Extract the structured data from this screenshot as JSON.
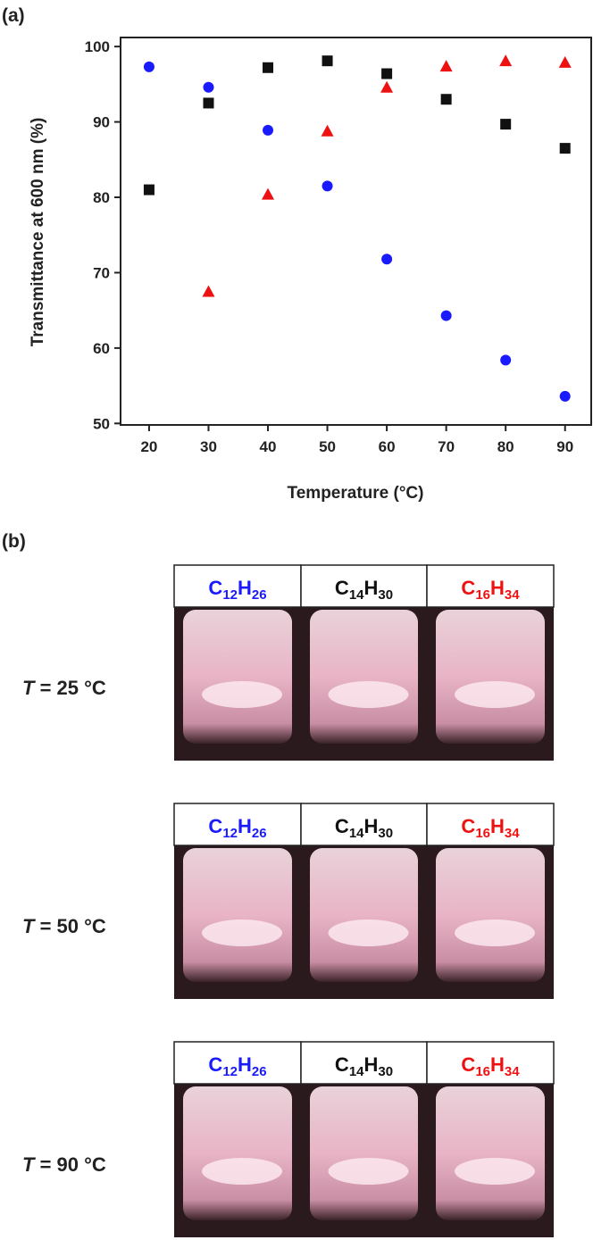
{
  "chart_data": {
    "type": "scatter",
    "xlabel": "Temperature (°C)",
    "ylabel": "Transmittance at 600 nm (%)",
    "xlim": [
      15.2,
      94.4
    ],
    "ylim": [
      49.8,
      101.2
    ],
    "xticks": [
      20,
      30,
      40,
      50,
      60,
      70,
      80,
      90
    ],
    "yticks": [
      50,
      60,
      70,
      80,
      90,
      100
    ],
    "series": [
      {
        "color": "#1a1aff",
        "marker": "circle",
        "x": [
          20,
          30,
          40,
          50,
          60,
          70,
          80,
          90
        ],
        "values": [
          97.3,
          94.6,
          88.9,
          81.5,
          71.8,
          64.3,
          58.4,
          53.6
        ]
      },
      {
        "color": "#111111",
        "marker": "square",
        "x": [
          20,
          30,
          40,
          50,
          60,
          70,
          80,
          90
        ],
        "values": [
          81.0,
          92.5,
          97.2,
          98.1,
          96.4,
          93.0,
          89.7,
          86.5
        ]
      },
      {
        "color": "#ee1111",
        "marker": "triangle",
        "x": [
          30,
          40,
          50,
          60,
          70,
          80,
          90
        ],
        "values": [
          67.5,
          80.4,
          88.8,
          94.6,
          97.4,
          98.1,
          97.9
        ]
      }
    ]
  },
  "panel_a": "(a)",
  "panel_b": "(b)",
  "headers": [
    {
      "parts": [
        "C",
        "12",
        "H",
        "26"
      ],
      "color": "#1a1aff"
    },
    {
      "parts": [
        "C",
        "14",
        "H",
        "30"
      ],
      "color": "#111111"
    },
    {
      "parts": [
        "C",
        "16",
        "H",
        "34"
      ],
      "color": "#ee1111"
    }
  ],
  "rows": [
    {
      "symbol": "T",
      "text": " = 25 °C"
    },
    {
      "symbol": "T",
      "text": " = 50 °C"
    },
    {
      "symbol": "T",
      "text": " = 90 °C"
    }
  ]
}
